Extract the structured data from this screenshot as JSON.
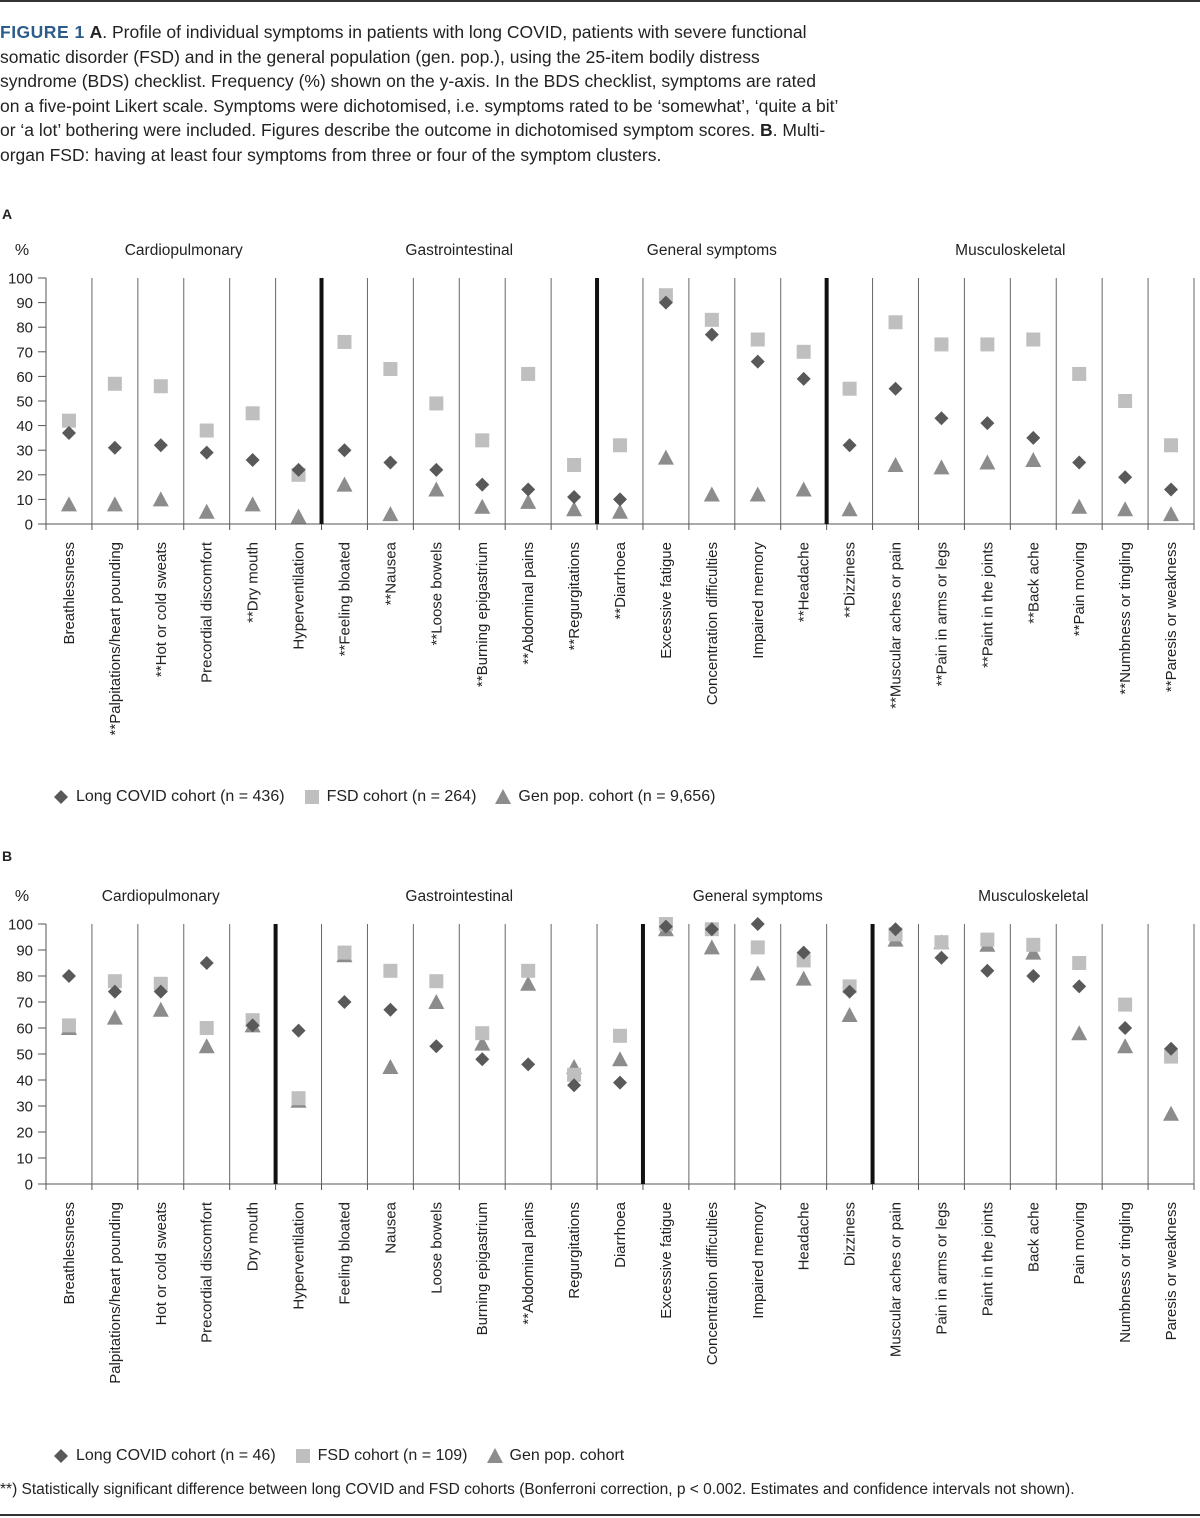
{
  "caption": {
    "fig_label": "FIGURE 1",
    "part_a": "A",
    "text_a": ". Profile of individual symptoms in patients with long COVID, patients with severe functional somatic disorder (FSD) and in the general population (gen. pop.), using the 25-item bodily distress syndrome (BDS) checklist. Frequency (%) shown on the y-axis. In the BDS checklist, symptoms are rated on a five-point Likert scale. Symptoms were dichotomised, i.e. symptoms rated to be ‘somewhat’, ‘quite a bit’ or ‘a lot’ bothering were included. Figures describe the outcome in dichotomised symptom scores. ",
    "part_b": "B",
    "text_b": ". Multi-organ FSD: having at least four symptoms from three or four of the symptom clusters."
  },
  "footnote": "**) Statistically significant difference between long COVID and FSD cohorts (Bonferroni correction, p < 0.002. Estimates and confidence intervals not shown).",
  "colors": {
    "long_covid": "#595959",
    "fsd": "#bfbfbf",
    "gen_pop": "#8c8c8c"
  },
  "chart_data": [
    {
      "panel": "A",
      "type": "scatter",
      "ylabel": "%",
      "ylim": [
        0,
        100
      ],
      "yticks": [
        0,
        10,
        20,
        30,
        40,
        50,
        60,
        70,
        80,
        90,
        100
      ],
      "groups": [
        {
          "label": "Cardiopulmonary",
          "count": 6
        },
        {
          "label": "Gastrointestinal",
          "count": 6
        },
        {
          "label": "General symptoms",
          "count": 5
        },
        {
          "label": "Musculoskeletal",
          "count": 8
        }
      ],
      "categories": [
        "Breathlessness",
        "**Palpitations/heart pounding",
        "**Hot or cold sweats",
        "Precordial discomfort",
        "**Dry mouth",
        "Hyperventilation",
        "**Feeling bloated",
        "**Nausea",
        "**Loose bowels",
        "**Burning epigastrium",
        "**Abdominal pains",
        "**Regurgitations",
        "**Diarrhoea",
        "Excessive fatigue",
        "Concentration difficulties",
        "Impaired memory",
        "**Headache",
        "**Dizziness",
        "**Muscular aches or pain",
        "**Pain in arms or legs",
        "**Paint in the joints",
        "**Back ache",
        "**Pain moving",
        "**Numbness or tingling",
        "**Paresis or weakness"
      ],
      "series": [
        {
          "name": "Long COVID cohort (n = 436)",
          "marker": "diamond",
          "values": [
            37,
            31,
            32,
            29,
            26,
            22,
            30,
            25,
            22,
            16,
            14,
            11,
            10,
            90,
            77,
            66,
            59,
            32,
            55,
            43,
            41,
            35,
            25,
            19,
            14
          ]
        },
        {
          "name": "FSD cohort (n = 264)",
          "marker": "square",
          "values": [
            42,
            57,
            56,
            38,
            45,
            20,
            74,
            63,
            49,
            34,
            61,
            24,
            32,
            93,
            83,
            75,
            70,
            55,
            82,
            73,
            73,
            75,
            61,
            50,
            32
          ]
        },
        {
          "name": "Gen pop. cohort (n = 9,656)",
          "marker": "triangle",
          "values": [
            8,
            8,
            10,
            5,
            8,
            3,
            16,
            4,
            14,
            7,
            9,
            6,
            5,
            27,
            12,
            12,
            14,
            6,
            24,
            23,
            25,
            26,
            7,
            6,
            4
          ]
        }
      ]
    },
    {
      "panel": "B",
      "type": "scatter",
      "ylabel": "%",
      "ylim": [
        0,
        100
      ],
      "yticks": [
        0,
        10,
        20,
        30,
        40,
        50,
        60,
        70,
        80,
        90,
        100
      ],
      "groups": [
        {
          "label": "Cardiopulmonary",
          "count": 5
        },
        {
          "label": "Gastrointestinal",
          "count": 8
        },
        {
          "label": "General symptoms",
          "count": 5
        },
        {
          "label": "Musculoskeletal",
          "count": 7
        }
      ],
      "categories": [
        "Breathlessness",
        "Palpitations/heart pounding",
        "Hot or cold sweats",
        "Precordial discomfort",
        "Dry mouth",
        "Hyperventilation",
        "Feeling bloated",
        "Nausea",
        "Loose bowels",
        "Burning epigastrium",
        "**Abdominal pains",
        "Regurgitations",
        "Diarrhoea",
        "Excessive fatigue",
        "Concentration difficulties",
        "Impaired memory",
        "Headache",
        "Dizziness",
        "Muscular aches or pain",
        "Pain in arms or legs",
        "Paint in the joints",
        "Back ache",
        "Pain moving",
        "Numbness or tingling",
        "Paresis or weakness"
      ],
      "series": [
        {
          "name": "Long COVID cohort (n = 46)",
          "marker": "diamond",
          "values": [
            80,
            74,
            74,
            85,
            61,
            59,
            70,
            67,
            53,
            48,
            46,
            38,
            39,
            99,
            98,
            100,
            89,
            74,
            98,
            87,
            82,
            80,
            76,
            60,
            52
          ]
        },
        {
          "name": "FSD cohort (n = 109)",
          "marker": "square",
          "values": [
            61,
            78,
            77,
            60,
            63,
            33,
            89,
            82,
            78,
            58,
            82,
            42,
            57,
            100,
            98,
            91,
            86,
            76,
            96,
            93,
            94,
            92,
            85,
            69,
            49
          ]
        },
        {
          "name": "Gen pop. cohort",
          "marker": "triangle",
          "values": [
            60,
            64,
            67,
            53,
            61,
            32,
            88,
            45,
            70,
            54,
            77,
            45,
            48,
            98,
            91,
            81,
            79,
            65,
            94,
            93,
            92,
            89,
            58,
            53,
            27
          ]
        }
      ]
    }
  ]
}
